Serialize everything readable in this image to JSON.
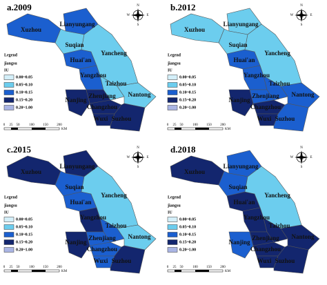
{
  "cities": [
    "Xuzhou",
    "Lianyungang",
    "Suqian",
    "Huai'an",
    "Yancheng",
    "Yangzhou",
    "Taizhou",
    "Nantong",
    "Nanjing",
    "Zhenjiang",
    "Changzhou",
    "Wuxi",
    "Suzhou"
  ],
  "legend": {
    "title": "Legend",
    "layer": "jiangsu",
    "field": "IU",
    "items": [
      {
        "label": "0.00~0.05",
        "color": "#d4eff9"
      },
      {
        "label": "0.05~0.10",
        "color": "#6ccdee"
      },
      {
        "label": "0.10~0.15",
        "color": "#1b5fcf"
      },
      {
        "label": "0.15~0.20",
        "color": "#13266e"
      },
      {
        "label": "0.20~1.00",
        "color": "#aab5e4"
      }
    ]
  },
  "scale": {
    "ticks": [
      "0",
      "25",
      "50",
      "100",
      "150",
      "200"
    ],
    "unit": "KM"
  },
  "compass": [
    "N",
    "W",
    "E",
    "S"
  ],
  "panels": [
    {
      "title": "a.2009",
      "fills": [
        "#1b5fcf",
        "#1b5fcf",
        "#6ccdee",
        "#1b5fcf",
        "#6ccdee",
        "#1b5fcf",
        "#6ccdee",
        "#6ccdee",
        "#13266e",
        "#13266e",
        "#13266e",
        "#13266e",
        "#13266e"
      ]
    },
    {
      "title": "b.2012",
      "fills": [
        "#6ccdee",
        "#6ccdee",
        "#6ccdee",
        "#1b5fcf",
        "#6ccdee",
        "#1b5fcf",
        "#1b5fcf",
        "#1b5fcf",
        "#13266e",
        "#1b5fcf",
        "#13266e",
        "#13266e",
        "#1b5fcf"
      ]
    },
    {
      "title": "c.2015",
      "fills": [
        "#13266e",
        "#13266e",
        "#1b5fcf",
        "#1b5fcf",
        "#6ccdee",
        "#13266e",
        "#1b5fcf",
        "#6ccdee",
        "#13266e",
        "#1b5fcf",
        "#1b5fcf",
        "#1b5fcf",
        "#13266e"
      ]
    },
    {
      "title": "d.2018",
      "fills": [
        "#13266e",
        "#1b5fcf",
        "#1b5fcf",
        "#13266e",
        "#6ccdee",
        "#13266e",
        "#13266e",
        "#13266e",
        "#1b5fcf",
        "#13266e",
        "#13266e",
        "#13266e",
        "#13266e"
      ]
    }
  ]
}
